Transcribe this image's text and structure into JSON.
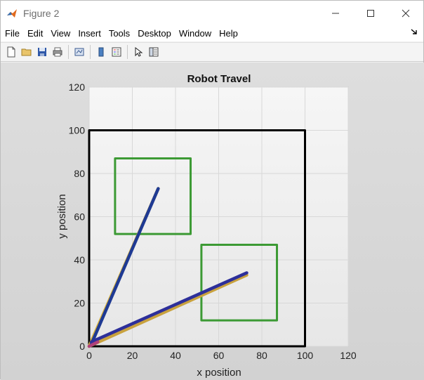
{
  "window": {
    "title": "Figure 2"
  },
  "menu": [
    "File",
    "Edit",
    "View",
    "Insert",
    "Tools",
    "Desktop",
    "Window",
    "Help"
  ],
  "toolbar": [
    "new-figure-icon",
    "open-folder-icon",
    "save-icon",
    "print-icon",
    "link-plot-icon",
    "colorbar-icon",
    "legend-icon",
    "edit-plot-icon",
    "property-inspector-icon"
  ],
  "chart_data": {
    "type": "line",
    "title": "Robot Travel",
    "xlabel": "x position",
    "ylabel": "y position",
    "xlim": [
      0,
      120
    ],
    "ylim": [
      0,
      120
    ],
    "xticks": [
      0,
      20,
      40,
      60,
      80,
      100,
      120
    ],
    "yticks": [
      0,
      20,
      40,
      60,
      80,
      100,
      120
    ],
    "grid": true,
    "boundary": {
      "x": [
        0,
        100,
        100,
        0,
        0
      ],
      "y": [
        0,
        0,
        100,
        100,
        0
      ],
      "color": "#000000"
    },
    "targets": [
      {
        "x": [
          12,
          47,
          47,
          12,
          12
        ],
        "y": [
          52,
          52,
          87,
          87,
          52
        ],
        "color": "#3c9a34"
      },
      {
        "x": [
          52,
          87,
          87,
          52,
          52
        ],
        "y": [
          12,
          12,
          47,
          47,
          12
        ],
        "color": "#3c9a34"
      }
    ],
    "series": [
      {
        "x": [
          0,
          32
        ],
        "y": [
          0,
          73
        ],
        "color": "#d7b13a"
      },
      {
        "x": [
          1,
          32
        ],
        "y": [
          1,
          73
        ],
        "color": "#1f3a93"
      },
      {
        "x": [
          0,
          73
        ],
        "y": [
          0,
          33
        ],
        "color": "#c9a23e"
      },
      {
        "x": [
          1,
          73
        ],
        "y": [
          2,
          34
        ],
        "color": "#2d2f9a"
      },
      {
        "x": [
          0,
          4
        ],
        "y": [
          0,
          2
        ],
        "color": "#b0407a"
      }
    ]
  }
}
